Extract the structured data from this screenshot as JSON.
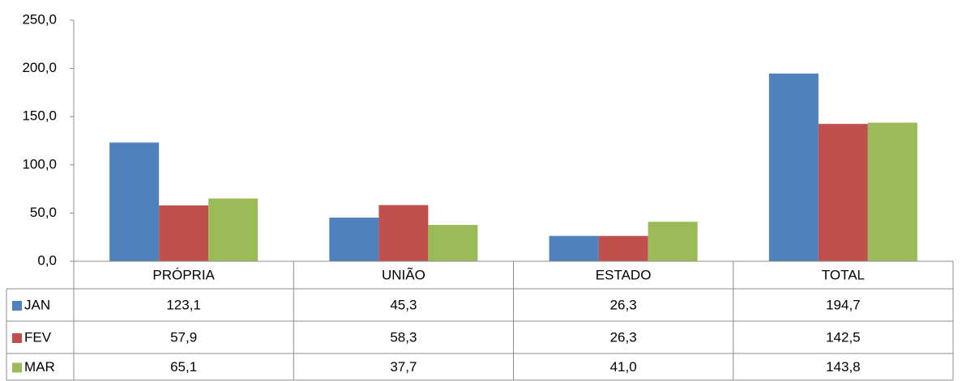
{
  "chart_data": {
    "type": "bar",
    "categories": [
      "PRÓPRIA",
      "UNIÃO",
      "ESTADO",
      "TOTAL"
    ],
    "series": [
      {
        "name": "JAN",
        "color": "#4f81bd",
        "values": [
          123.1,
          45.3,
          26.3,
          194.7
        ],
        "value_labels": [
          "123,1",
          "45,3",
          "26,3",
          "194,7"
        ]
      },
      {
        "name": "FEV",
        "color": "#c0504d",
        "values": [
          57.9,
          58.3,
          26.3,
          142.5
        ],
        "value_labels": [
          "57,9",
          "58,3",
          "26,3",
          "142,5"
        ]
      },
      {
        "name": "MAR",
        "color": "#9bbb59",
        "values": [
          65.1,
          37.7,
          41.0,
          143.8
        ],
        "value_labels": [
          "65,1",
          "37,7",
          "41,0",
          "143,8"
        ]
      }
    ],
    "ylim": [
      0,
      250
    ],
    "yticks": [
      {
        "value": 0,
        "label": "0,0"
      },
      {
        "value": 50,
        "label": "50,0"
      },
      {
        "value": 100,
        "label": "100,0"
      },
      {
        "value": 150,
        "label": "150,0"
      },
      {
        "value": 200,
        "label": "200,0"
      },
      {
        "value": 250,
        "label": "250,0"
      }
    ],
    "grid": false,
    "data_table": true
  }
}
